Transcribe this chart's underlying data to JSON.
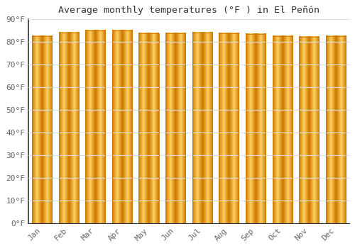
{
  "title": "Average monthly temperatures (°F ) in El Peñón",
  "months": [
    "Jan",
    "Feb",
    "Mar",
    "Apr",
    "May",
    "Jun",
    "Jul",
    "Aug",
    "Sep",
    "Oct",
    "Nov",
    "Dec"
  ],
  "values": [
    82.5,
    84.0,
    85.0,
    84.8,
    83.8,
    83.8,
    84.0,
    83.8,
    83.5,
    82.5,
    82.2,
    82.5
  ],
  "bar_color_main": "#FFAA00",
  "bar_color_edge": "#CC7700",
  "bar_color_light": "#FFD060",
  "background_color": "#ffffff",
  "grid_color": "#dddddd",
  "ylim": [
    0,
    90
  ],
  "yticks": [
    0,
    10,
    20,
    30,
    40,
    50,
    60,
    70,
    80,
    90
  ],
  "ytick_labels": [
    "0°F",
    "10°F",
    "20°F",
    "30°F",
    "40°F",
    "50°F",
    "60°F",
    "70°F",
    "80°F",
    "90°F"
  ],
  "title_fontsize": 9.5,
  "tick_fontsize": 8,
  "bar_width": 0.75
}
